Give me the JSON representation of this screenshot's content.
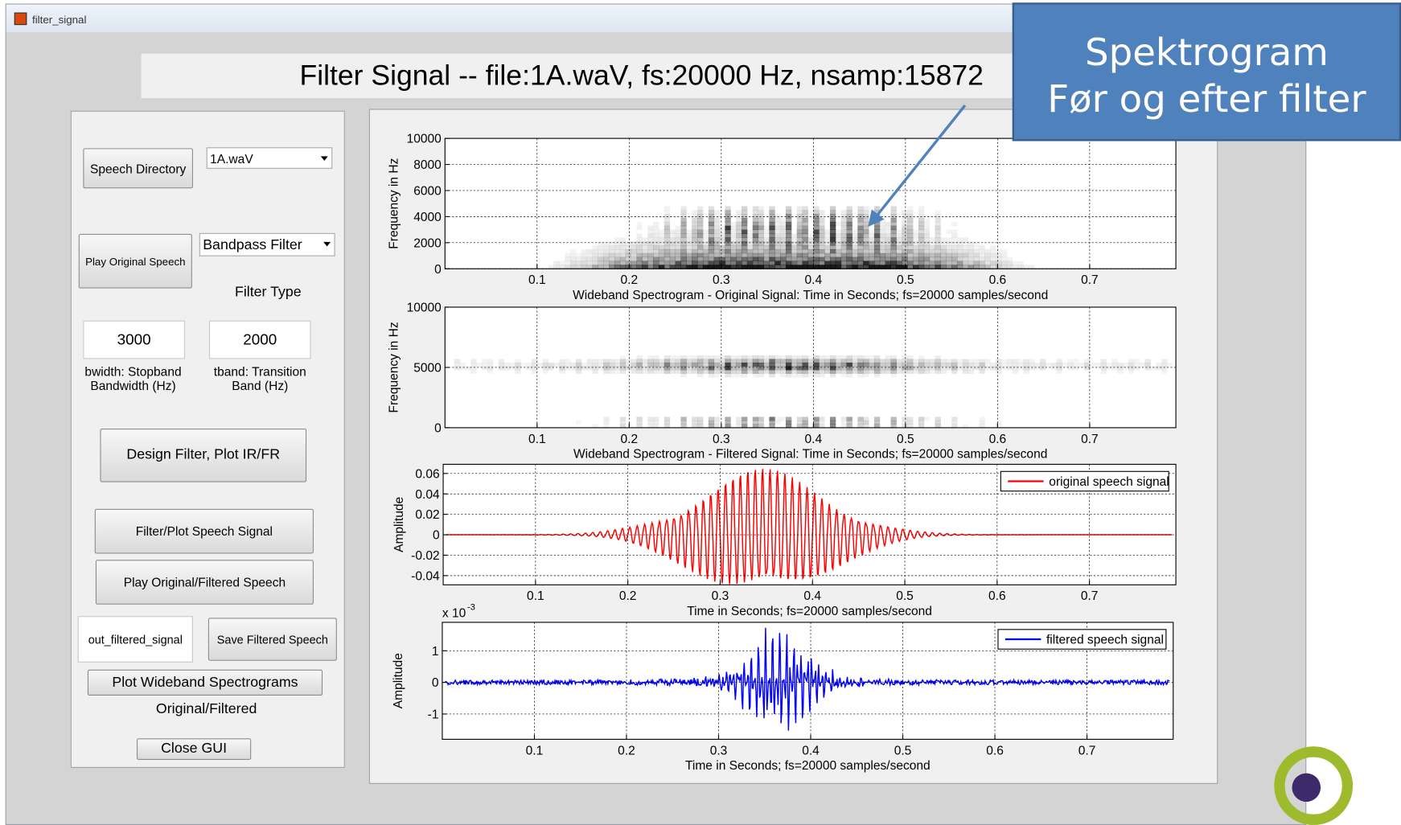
{
  "window": {
    "title": "filter_signal"
  },
  "header": {
    "title": "Filter Signal --  file:1A.waV, fs:20000 Hz, nsamp:15872"
  },
  "callout": {
    "lines": [
      "Spektrogram",
      "Før og efter filter"
    ]
  },
  "controls": {
    "speech_directory": "Speech Directory",
    "file_select": "1A.waV",
    "play_original": "Play Original Speech",
    "filter_select": "Bandpass Filter",
    "filter_type_label": "Filter Type",
    "bwidth_value": "3000",
    "tband_value": "2000",
    "bwidth_label": [
      "bwidth: Stopband",
      "Bandwidth (Hz)"
    ],
    "tband_label": [
      "tband: Transition",
      "Band (Hz)"
    ],
    "design": "Design Filter, Plot IR/FR",
    "filter_plot": "Filter/Plot Speech Signal",
    "play_both": "Play Original/Filtered Speech",
    "out_name": "out_filtered_signal",
    "save": "Save Filtered Speech",
    "plot_spectrograms": "Plot Wideband Spectrograms",
    "spectrogram_label": "Original/Filtered",
    "close": "Close GUI"
  },
  "plots": [
    {
      "kind": "spectrogram",
      "variant": "original",
      "ylabel": "Frequency in Hz",
      "xlabel": "Wideband Spectrogram - Original Signal: Time in Seconds; fs=20000 samples/second",
      "xlim": [
        0,
        0.7936
      ],
      "xticks": [
        0.1,
        0.2,
        0.3,
        0.4,
        0.5,
        0.6,
        0.7
      ],
      "ylim": [
        0,
        10000
      ],
      "yticks": [
        0,
        2000,
        4000,
        6000,
        8000,
        10000
      ]
    },
    {
      "kind": "spectrogram",
      "variant": "filtered",
      "ylabel": "Frequency in Hz",
      "xlabel": "Wideband Spectrogram - Filtered Signal: Time in Seconds; fs=20000 samples/second",
      "xlim": [
        0,
        0.7936
      ],
      "xticks": [
        0.1,
        0.2,
        0.3,
        0.4,
        0.5,
        0.6,
        0.7
      ],
      "ylim": [
        0,
        10000
      ],
      "yticks": [
        0,
        5000,
        10000
      ]
    },
    {
      "kind": "waveform",
      "variant": "original",
      "ylabel": "Amplitude",
      "xlabel": "Time in Seconds; fs=20000 samples/second",
      "xlim": [
        0,
        0.7936
      ],
      "xticks": [
        0.1,
        0.2,
        0.3,
        0.4,
        0.5,
        0.6,
        0.7
      ],
      "ylim": [
        -0.049,
        0.069
      ],
      "yticks": [
        -0.04,
        -0.02,
        0,
        0.02,
        0.04,
        0.06
      ],
      "legend": "original speech signal",
      "color": "#ff0000"
    },
    {
      "kind": "waveform",
      "variant": "filtered",
      "ylabel": "Amplitude",
      "xlabel": "Time in Seconds; fs=20000 samples/second",
      "xlim": [
        0,
        0.7936
      ],
      "xticks": [
        0.1,
        0.2,
        0.3,
        0.4,
        0.5,
        0.6,
        0.7
      ],
      "ylim": [
        -1.8,
        1.9
      ],
      "yticks": [
        -1,
        0,
        1
      ],
      "exponent": {
        "base": "x 10",
        "power": "-3"
      },
      "legend": "filtered speech signal",
      "color": "#0000ff"
    }
  ]
}
